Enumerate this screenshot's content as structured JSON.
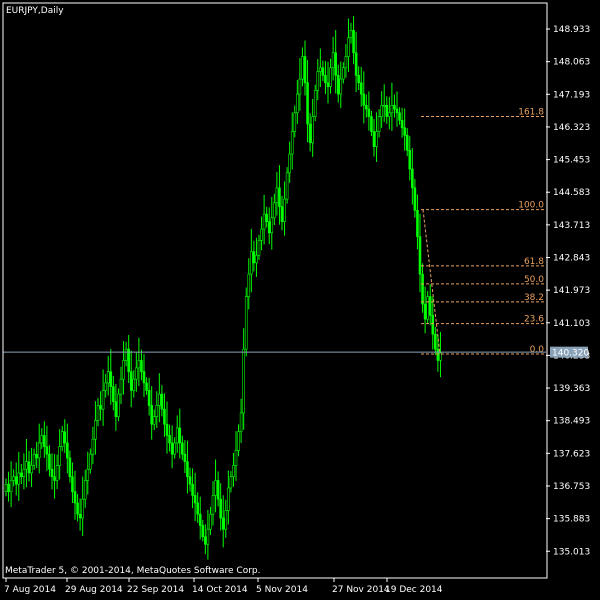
{
  "window": {
    "symbol_label": "EURJPY,Daily",
    "copyright": "MetaTrader 5, © 2001-2014, MetaQuotes Software Corp."
  },
  "colors": {
    "background": "#000000",
    "candle": "#00ff00",
    "axis": "#ffffff",
    "fibo": "#e8a060",
    "current_price_line": "#8aa2b8",
    "current_price_box": "#8aa2b8"
  },
  "chart_data": {
    "type": "candlestick",
    "title": "",
    "xlabel": "",
    "ylabel": "",
    "ylim": [
      134.3,
      149.6
    ],
    "y_tick_labels": [
      "148.933",
      "148.063",
      "147.193",
      "146.323",
      "145.453",
      "144.583",
      "143.713",
      "142.843",
      "141.973",
      "141.103",
      "140.233",
      "139.363",
      "138.493",
      "137.623",
      "136.753",
      "135.883",
      "135.013"
    ],
    "x_tick_labels": [
      "7 Aug 2014",
      "29 Aug 2014",
      "22 Sep 2014",
      "14 Oct 2014",
      "5 Nov 2014",
      "27 Nov 2014",
      "19 Dec 2014"
    ],
    "current_price": "140.320",
    "fibonacci": {
      "levels": [
        "161.8",
        "100.0",
        "61.8",
        "50.0",
        "38.2",
        "23.6",
        "0.0"
      ],
      "prices": [
        146.6,
        144.12,
        142.62,
        142.14,
        141.66,
        141.08,
        140.27
      ]
    },
    "closes": [
      136.8,
      136.6,
      136.9,
      137.0,
      136.8,
      137.1,
      137.0,
      137.2,
      137.4,
      137.1,
      137.3,
      137.6,
      137.5,
      137.9,
      138.1,
      137.8,
      137.6,
      137.2,
      137.0,
      136.9,
      137.3,
      137.8,
      138.2,
      137.9,
      137.5,
      137.0,
      136.6,
      136.3,
      136.0,
      135.9,
      136.4,
      136.9,
      137.2,
      137.6,
      138.0,
      138.5,
      138.9,
      138.8,
      139.3,
      139.5,
      139.8,
      139.4,
      139.0,
      138.6,
      139.2,
      139.6,
      140.1,
      140.4,
      139.8,
      139.3,
      139.6,
      139.9,
      140.1,
      139.8,
      139.5,
      139.3,
      138.9,
      138.4,
      138.6,
      138.9,
      139.2,
      138.8,
      138.4,
      138.1,
      137.9,
      137.6,
      137.9,
      138.3,
      137.9,
      137.6,
      137.4,
      137.0,
      136.8,
      136.5,
      136.3,
      136.0,
      135.7,
      135.4,
      135.2,
      135.6,
      136.0,
      136.5,
      136.9,
      136.4,
      135.9,
      135.6,
      136.1,
      136.7,
      137.0,
      137.3,
      137.7,
      138.2,
      138.7,
      140.4,
      141.8,
      142.4,
      143.0,
      142.7,
      142.9,
      143.3,
      143.6,
      144.0,
      143.8,
      143.5,
      143.9,
      144.3,
      144.7,
      144.2,
      143.8,
      144.4,
      145.1,
      145.6,
      146.2,
      146.7,
      147.2,
      147.6,
      148.2,
      147.5,
      146.4,
      145.9,
      146.6,
      147.3,
      147.8,
      147.9,
      147.7,
      147.5,
      147.4,
      147.9,
      148.3,
      147.7,
      147.2,
      147.6,
      147.9,
      148.2,
      148.7,
      148.9,
      148.3,
      147.7,
      147.5,
      147.2,
      146.9,
      146.8,
      146.6,
      146.2,
      145.8,
      146.2,
      146.6,
      146.9,
      146.9,
      146.6,
      146.7,
      146.9,
      146.8,
      146.7,
      146.5,
      146.3,
      146.1,
      145.7,
      145.2,
      144.7,
      144.1,
      143.4,
      142.4,
      141.6,
      141.2,
      141.8,
      141.3,
      140.8,
      140.4,
      140.1,
      140.3
    ]
  }
}
